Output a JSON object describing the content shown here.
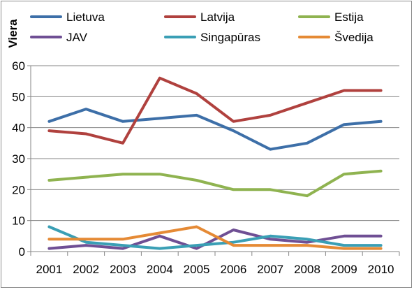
{
  "chart_data": {
    "type": "line",
    "title": "",
    "xlabel": "",
    "ylabel": "Viera",
    "x": [
      "2001",
      "2002",
      "2003",
      "2004",
      "2005",
      "2006",
      "2007",
      "2008",
      "2009",
      "2010"
    ],
    "yticks": [
      "0",
      "10",
      "20",
      "30",
      "40",
      "50",
      "60"
    ],
    "ylim": [
      0,
      60
    ],
    "grid": true,
    "legend_position": "top",
    "series": [
      {
        "name": "Lietuva",
        "color": "#3d6fa8",
        "values": [
          42,
          46,
          42,
          43,
          44,
          39,
          33,
          35,
          41,
          42
        ]
      },
      {
        "name": "Latvija",
        "color": "#b0413e",
        "values": [
          39,
          38,
          35,
          56,
          51,
          42,
          44,
          48,
          52,
          52
        ]
      },
      {
        "name": "Estija",
        "color": "#8fb350",
        "values": [
          23,
          24,
          25,
          25,
          23,
          20,
          20,
          18,
          25,
          26
        ]
      },
      {
        "name": "JAV",
        "color": "#6f4f94",
        "values": [
          1,
          2,
          1,
          5,
          1,
          7,
          4,
          3,
          5,
          5
        ]
      },
      {
        "name": "Singapūras",
        "color": "#3a9fb5",
        "values": [
          8,
          3,
          2,
          1,
          2,
          3,
          5,
          4,
          2,
          2
        ]
      },
      {
        "name": "Švedija",
        "color": "#e58a35",
        "values": [
          4,
          4,
          4,
          6,
          8,
          2,
          2,
          2,
          1,
          1
        ]
      }
    ]
  }
}
